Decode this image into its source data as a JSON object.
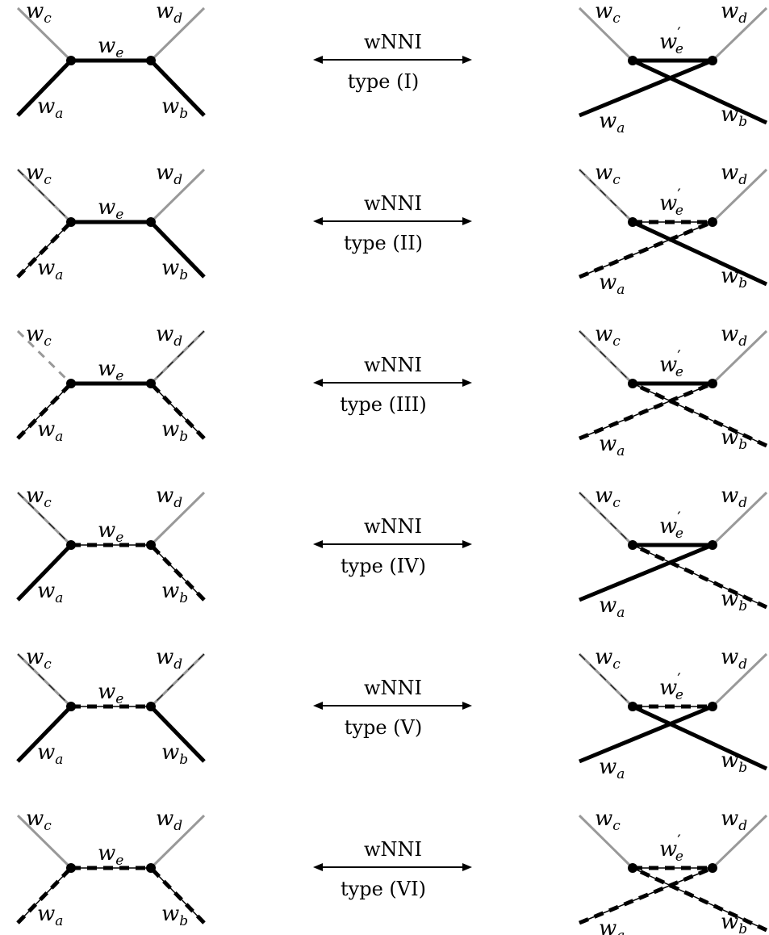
{
  "labels": {
    "wa": {
      "base": "w",
      "sub": "a"
    },
    "wb": {
      "base": "w",
      "sub": "b"
    },
    "wc": {
      "base": "w",
      "sub": "c"
    },
    "wd": {
      "base": "w",
      "sub": "d"
    },
    "we": {
      "base": "w",
      "sub": "e"
    },
    "we_prime": {
      "base": "w",
      "prime": "′",
      "sub": "e"
    }
  },
  "colors": {
    "solid_edge": "#000000",
    "gray_edge": "#999999",
    "dashed_edge": "#000000",
    "vertex": "#000000"
  },
  "rows": [
    {
      "operation": "wNNI",
      "type_label": "type (I)",
      "left": {
        "a": "solid",
        "b": "solid",
        "c": "gray",
        "d": "gray",
        "e": "solid"
      },
      "right": {
        "a": "solid",
        "b": "solid",
        "c": "gray",
        "d": "gray",
        "e": "solid"
      }
    },
    {
      "operation": "wNNI",
      "type_label": "type (II)",
      "left": {
        "a": "dashed",
        "b": "solid",
        "c": "graythin",
        "d": "gray",
        "e": "solid"
      },
      "right": {
        "a": "dashed",
        "b": "solid",
        "c": "graythin",
        "d": "gray",
        "e": "dashed"
      }
    },
    {
      "operation": "wNNI",
      "type_label": "type (III)",
      "left": {
        "a": "dashed",
        "b": "dashed",
        "c": "graydashed",
        "d": "graythin",
        "e": "solid"
      },
      "right": {
        "a": "dashed",
        "b": "dashed",
        "c": "graythin",
        "d": "gray",
        "e": "solid"
      }
    },
    {
      "operation": "wNNI",
      "type_label": "type (IV)",
      "left": {
        "a": "solid",
        "b": "dashed",
        "c": "graythin",
        "d": "gray",
        "e": "dashed"
      },
      "right": {
        "a": "solid",
        "b": "dashed",
        "c": "graythin",
        "d": "gray",
        "e": "solid"
      }
    },
    {
      "operation": "wNNI",
      "type_label": "type (V)",
      "left": {
        "a": "solid",
        "b": "solid",
        "c": "graythin",
        "d": "graythin",
        "e": "dashed"
      },
      "right": {
        "a": "solid",
        "b": "solid",
        "c": "graythin",
        "d": "gray",
        "e": "dashed"
      }
    },
    {
      "operation": "wNNI",
      "type_label": "type (VI)",
      "left": {
        "a": "dashed",
        "b": "dashed",
        "c": "gray",
        "d": "gray",
        "e": "dashed"
      },
      "right": {
        "a": "dashed",
        "b": "dashed",
        "c": "gray",
        "d": "gray",
        "e": "dashed"
      }
    }
  ]
}
